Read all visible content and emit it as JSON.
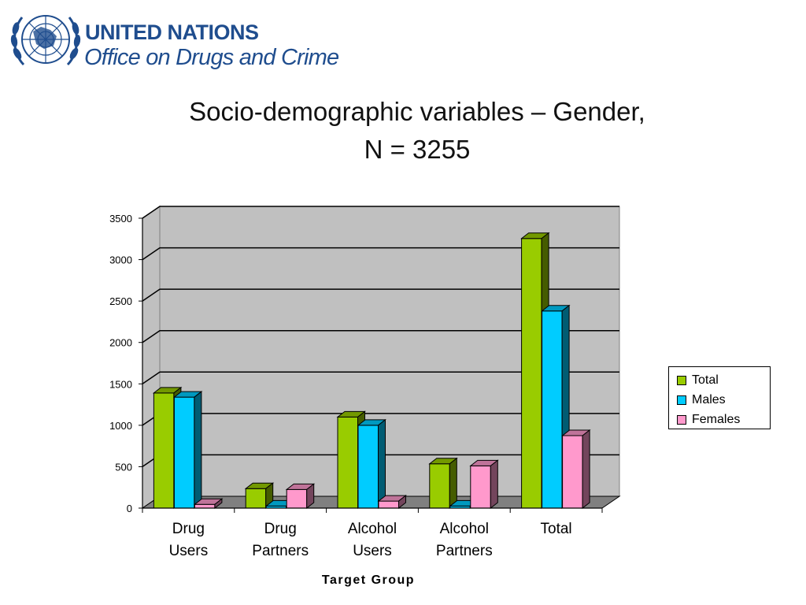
{
  "header": {
    "org_line": "UNITED NATIONS",
    "office_line": "Office on Drugs and Crime",
    "brand_color": "#1f4d8e"
  },
  "slide": {
    "title_line1": "Socio-demographic variables – Gender,",
    "title_line2": "N = 3255"
  },
  "chart_data": {
    "type": "bar",
    "style": "3d-clustered-column",
    "categories": [
      [
        "Drug",
        "Users"
      ],
      [
        "Drug",
        "Partners"
      ],
      [
        "Alcohol",
        "Users"
      ],
      [
        "Alcohol",
        "Partners"
      ],
      [
        "Total"
      ]
    ],
    "series": [
      {
        "name": "Total",
        "color": "#99cc00",
        "values": [
          1390,
          235,
          1100,
          535,
          3255
        ]
      },
      {
        "name": "Males",
        "color": "#00ccff",
        "values": [
          1340,
          25,
          1000,
          25,
          2380
        ]
      },
      {
        "name": "Females",
        "color": "#ff99cc",
        "values": [
          45,
          225,
          85,
          510,
          875
        ]
      }
    ],
    "xlabel": "Target Group",
    "ylabel": "",
    "ylim": [
      0,
      3500
    ],
    "yticks": [
      0,
      500,
      1000,
      1500,
      2000,
      2500,
      3000,
      3500
    ],
    "grid": true,
    "legend_position": "right",
    "wall_color": "#c0c0c0",
    "floor_color": "#808080"
  }
}
